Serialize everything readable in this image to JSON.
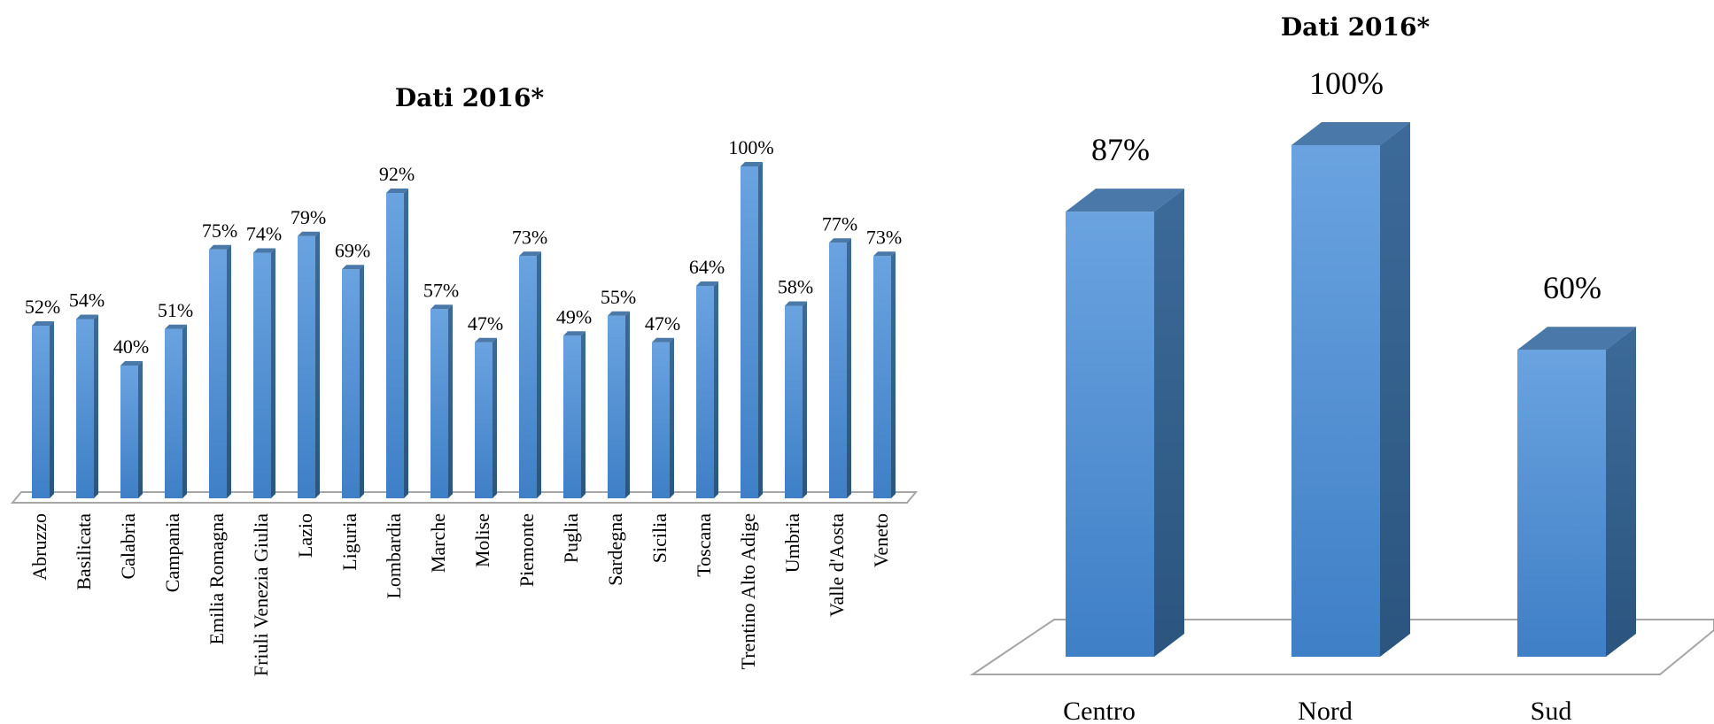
{
  "chart_data": [
    {
      "type": "bar",
      "title": "Dati 2016*",
      "categories": [
        "Abruzzo",
        "Basilicata",
        "Calabria",
        "Campania",
        "Emilia Romagna",
        "Friuli Venezia Giulia",
        "Lazio",
        "Liguria",
        "Lombardia",
        "Marche",
        "Molise",
        "Piemonte",
        "Puglia",
        "Sardegna",
        "Sicilia",
        "Toscana",
        "Trentino Alto Adige",
        "Umbria",
        "Valle d'Aosta",
        "Veneto"
      ],
      "values": [
        52,
        54,
        40,
        51,
        75,
        74,
        79,
        69,
        92,
        57,
        47,
        73,
        49,
        55,
        47,
        64,
        100,
        58,
        77,
        73
      ],
      "data_labels": [
        "52%",
        "54%",
        "40%",
        "51%",
        "75%",
        "74%",
        "79%",
        "69%",
        "92%",
        "57%",
        "47%",
        "73%",
        "49%",
        "55%",
        "47%",
        "64%",
        "100%",
        "58%",
        "77%",
        "73%"
      ],
      "ylim": [
        0,
        100
      ],
      "grid": false,
      "style": "3d"
    },
    {
      "type": "bar",
      "title": "Dati 2016*",
      "categories": [
        "Centro",
        "Nord",
        "Sud"
      ],
      "values": [
        87,
        100,
        60
      ],
      "data_labels": [
        "87%",
        "100%",
        "60%"
      ],
      "ylim": [
        0,
        100
      ],
      "grid": false,
      "style": "3d"
    }
  ],
  "colors": {
    "bar_front": "#4f8fd6",
    "bar_side": "#2f5f8f",
    "bar_top": "#4a78a8",
    "floor_stroke": "#a6a6a6"
  }
}
